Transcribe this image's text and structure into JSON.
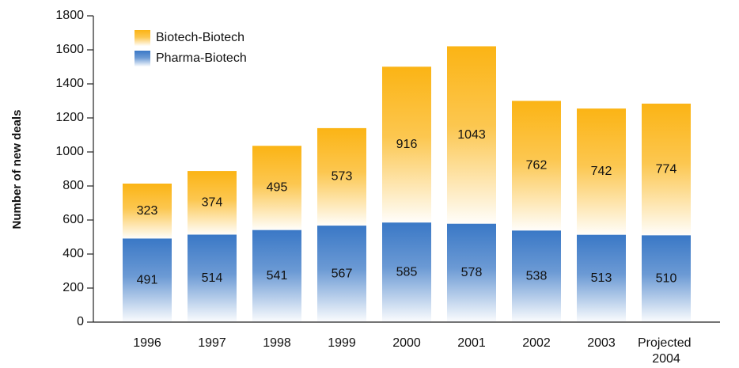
{
  "chart_data": {
    "type": "stacked_bar",
    "y_label": "Number of new deals",
    "categories": [
      "1996",
      "1997",
      "1998",
      "1999",
      "2000",
      "2001",
      "2002",
      "2003",
      "Projected 2004"
    ],
    "series": [
      {
        "name": "Pharma-Biotech",
        "color": "#3a78c6",
        "values": [
          491,
          514,
          541,
          567,
          585,
          578,
          538,
          513,
          510
        ]
      },
      {
        "name": "Biotech-Biotech",
        "color": "#fbb415",
        "values": [
          323,
          374,
          495,
          573,
          916,
          1043,
          762,
          742,
          774
        ]
      }
    ],
    "ylim": [
      0,
      1800
    ],
    "yticks": [
      0,
      200,
      400,
      600,
      800,
      1000,
      1200,
      1400,
      1600,
      1800
    ],
    "legend": "upper left"
  }
}
